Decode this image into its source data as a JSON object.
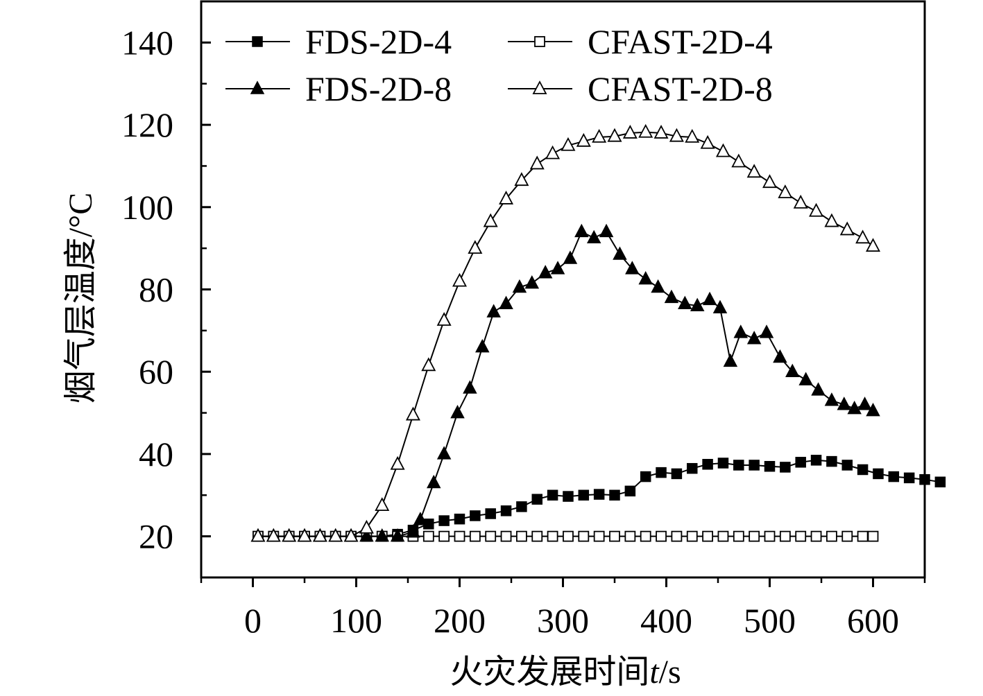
{
  "chart_data": {
    "type": "line",
    "title": "",
    "xlabel": "火灾发展时间",
    "xlabel_var": "t",
    "xlabel_unit": "/s",
    "ylabel": "烟气层温度/°C",
    "xlim": [
      -50,
      650
    ],
    "ylim": [
      10,
      150
    ],
    "xticks": [
      0,
      100,
      200,
      300,
      400,
      500,
      600
    ],
    "yticks": [
      20,
      40,
      60,
      80,
      100,
      120,
      140
    ],
    "grid": false,
    "legend_position": "top-left",
    "series": [
      {
        "name": "FDS-2D-4",
        "marker": "filled-square",
        "points": [
          [
            5,
            20
          ],
          [
            20,
            20
          ],
          [
            35,
            20
          ],
          [
            50,
            20
          ],
          [
            65,
            20
          ],
          [
            80,
            20
          ],
          [
            95,
            20
          ],
          [
            110,
            20
          ],
          [
            125,
            20
          ],
          [
            140,
            20.5
          ],
          [
            155,
            21.5
          ],
          [
            170,
            23
          ],
          [
            185,
            23.8
          ],
          [
            200,
            24.2
          ],
          [
            215,
            25
          ],
          [
            230,
            25.5
          ],
          [
            245,
            26.2
          ],
          [
            260,
            27.2
          ],
          [
            275,
            29
          ],
          [
            290,
            30
          ],
          [
            305,
            29.7
          ],
          [
            320,
            30
          ],
          [
            335,
            30.2
          ],
          [
            350,
            30
          ],
          [
            365,
            31
          ],
          [
            380,
            34.5
          ],
          [
            395,
            35.5
          ],
          [
            410,
            35.2
          ],
          [
            425,
            36.5
          ],
          [
            440,
            37.5
          ],
          [
            455,
            37.8
          ],
          [
            470,
            37.3
          ],
          [
            485,
            37.3
          ],
          [
            500,
            37
          ],
          [
            515,
            36.8
          ],
          [
            530,
            38
          ],
          [
            545,
            38.5
          ],
          [
            560,
            38.2
          ],
          [
            575,
            37.3
          ],
          [
            590,
            36.2
          ],
          [
            605,
            35.2
          ],
          [
            620,
            34.5
          ],
          [
            635,
            34.2
          ],
          [
            650,
            33.8
          ],
          [
            665,
            33.2
          ]
        ]
      },
      {
        "name": "CFAST-2D-4",
        "marker": "open-square",
        "points": [
          [
            5,
            20
          ],
          [
            20,
            20
          ],
          [
            35,
            20
          ],
          [
            50,
            20
          ],
          [
            65,
            20
          ],
          [
            80,
            20
          ],
          [
            95,
            20
          ],
          [
            110,
            20
          ],
          [
            125,
            20
          ],
          [
            140,
            20
          ],
          [
            155,
            20
          ],
          [
            170,
            20
          ],
          [
            185,
            20
          ],
          [
            200,
            20
          ],
          [
            215,
            20
          ],
          [
            230,
            20
          ],
          [
            245,
            20
          ],
          [
            260,
            20
          ],
          [
            275,
            20
          ],
          [
            290,
            20
          ],
          [
            305,
            20
          ],
          [
            320,
            20
          ],
          [
            335,
            20
          ],
          [
            350,
            20
          ],
          [
            365,
            20
          ],
          [
            380,
            20
          ],
          [
            395,
            20
          ],
          [
            410,
            20
          ],
          [
            425,
            20
          ],
          [
            440,
            20
          ],
          [
            455,
            20
          ],
          [
            470,
            20
          ],
          [
            485,
            20
          ],
          [
            500,
            20
          ],
          [
            515,
            20
          ],
          [
            530,
            20
          ],
          [
            545,
            20
          ],
          [
            560,
            20
          ],
          [
            575,
            20
          ],
          [
            590,
            20
          ],
          [
            600,
            20
          ]
        ]
      },
      {
        "name": "FDS-2D-8",
        "marker": "filled-triangle",
        "points": [
          [
            5,
            20
          ],
          [
            20,
            20
          ],
          [
            35,
            20
          ],
          [
            50,
            20
          ],
          [
            65,
            20
          ],
          [
            80,
            20
          ],
          [
            95,
            20
          ],
          [
            110,
            20
          ],
          [
            125,
            20
          ],
          [
            140,
            20
          ],
          [
            155,
            21
          ],
          [
            162,
            24
          ],
          [
            175,
            33
          ],
          [
            185,
            40
          ],
          [
            198,
            50
          ],
          [
            210,
            56
          ],
          [
            222,
            66
          ],
          [
            233,
            74.5
          ],
          [
            245,
            76.5
          ],
          [
            258,
            80.5
          ],
          [
            270,
            81.5
          ],
          [
            283,
            84
          ],
          [
            295,
            85
          ],
          [
            307,
            87.5
          ],
          [
            318,
            94
          ],
          [
            330,
            92.5
          ],
          [
            342,
            94
          ],
          [
            355,
            88.5
          ],
          [
            367,
            85
          ],
          [
            380,
            82.5
          ],
          [
            392,
            80.5
          ],
          [
            405,
            78
          ],
          [
            418,
            76.5
          ],
          [
            430,
            76
          ],
          [
            442,
            77.5
          ],
          [
            452,
            75.5
          ],
          [
            462,
            62.5
          ],
          [
            472,
            69.5
          ],
          [
            485,
            68
          ],
          [
            497,
            69.5
          ],
          [
            510,
            63.5
          ],
          [
            522,
            60
          ],
          [
            535,
            58
          ],
          [
            547,
            55.5
          ],
          [
            560,
            53
          ],
          [
            572,
            52
          ],
          [
            582,
            51
          ],
          [
            592,
            52
          ],
          [
            600,
            50.5
          ]
        ]
      },
      {
        "name": "CFAST-2D-8",
        "marker": "open-triangle",
        "points": [
          [
            5,
            20
          ],
          [
            20,
            20
          ],
          [
            35,
            20
          ],
          [
            50,
            20
          ],
          [
            65,
            20
          ],
          [
            80,
            20
          ],
          [
            95,
            20
          ],
          [
            110,
            22
          ],
          [
            125,
            27.5
          ],
          [
            140,
            37.5
          ],
          [
            155,
            49.5
          ],
          [
            170,
            61.5
          ],
          [
            185,
            72.5
          ],
          [
            200,
            82
          ],
          [
            215,
            90
          ],
          [
            230,
            96.5
          ],
          [
            245,
            102
          ],
          [
            260,
            106.5
          ],
          [
            275,
            110.5
          ],
          [
            290,
            113
          ],
          [
            305,
            115
          ],
          [
            320,
            116
          ],
          [
            335,
            117
          ],
          [
            350,
            117.2
          ],
          [
            365,
            118
          ],
          [
            380,
            118.2
          ],
          [
            395,
            118
          ],
          [
            410,
            117.2
          ],
          [
            425,
            117
          ],
          [
            440,
            115.5
          ],
          [
            455,
            113.5
          ],
          [
            470,
            111
          ],
          [
            485,
            108.5
          ],
          [
            500,
            106
          ],
          [
            515,
            103.5
          ],
          [
            530,
            101
          ],
          [
            545,
            99
          ],
          [
            560,
            96.5
          ],
          [
            575,
            94.5
          ],
          [
            590,
            92.5
          ],
          [
            600,
            90.5
          ]
        ]
      }
    ]
  }
}
